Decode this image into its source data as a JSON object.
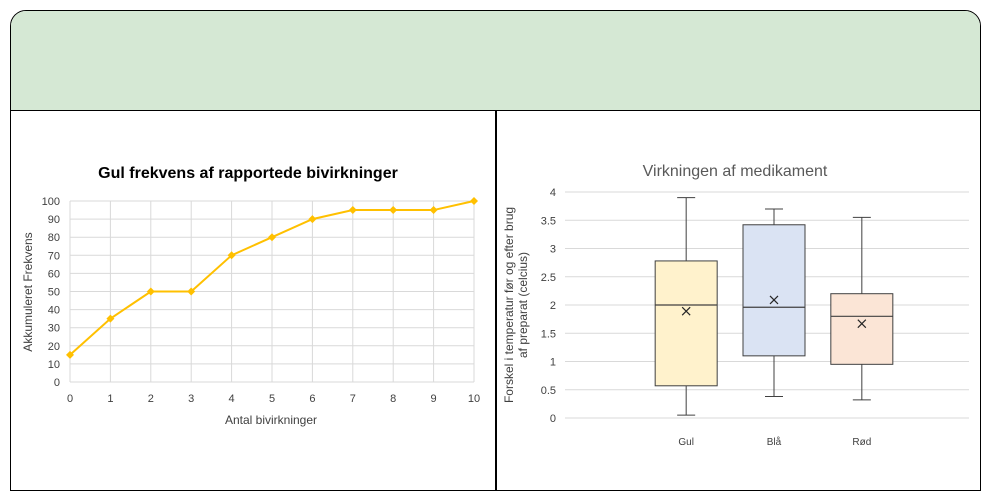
{
  "chart_data": [
    {
      "type": "line",
      "title": "Gul frekvens af rapportede bivirkninger",
      "xlabel": "Antal bivirkninger",
      "ylabel": "Akkumuleret Frekvens",
      "x": [
        0,
        1,
        2,
        3,
        4,
        5,
        6,
        7,
        8,
        9,
        10
      ],
      "series": [
        {
          "values": [
            15,
            35,
            50,
            50,
            70,
            80,
            90,
            95,
            95,
            95,
            100
          ],
          "color": "#ffc000"
        }
      ],
      "ylim": [
        0,
        100
      ],
      "yticks": [
        0,
        10,
        20,
        30,
        40,
        50,
        60,
        70,
        80,
        90,
        100
      ],
      "grid": true
    },
    {
      "type": "box",
      "title": "Virkningen af medikament",
      "ylabel_lines": [
        "Forskel i temperatur før og efter brug",
        "af preparat (celcius)"
      ],
      "categories": [
        "Gul",
        "Blå",
        "Rød"
      ],
      "boxes": [
        {
          "name": "Gul",
          "min": 0.05,
          "q1": 0.57,
          "median": 2.0,
          "q3": 2.78,
          "max": 3.9,
          "mean": 1.89,
          "fill": "#fff2cc"
        },
        {
          "name": "Blå",
          "min": 0.38,
          "q1": 1.1,
          "median": 1.96,
          "q3": 3.42,
          "max": 3.7,
          "mean": 2.09,
          "fill": "#dae3f3"
        },
        {
          "name": "Rød",
          "min": 0.32,
          "q1": 0.95,
          "median": 1.8,
          "q3": 2.2,
          "max": 3.55,
          "mean": 1.67,
          "fill": "#fbe5d6"
        }
      ],
      "ylim": [
        0,
        4
      ],
      "yticks": [
        "0",
        "0.5",
        "1",
        "1.5",
        "2",
        "2.5",
        "3",
        "3.5",
        "4"
      ],
      "grid": true
    }
  ]
}
